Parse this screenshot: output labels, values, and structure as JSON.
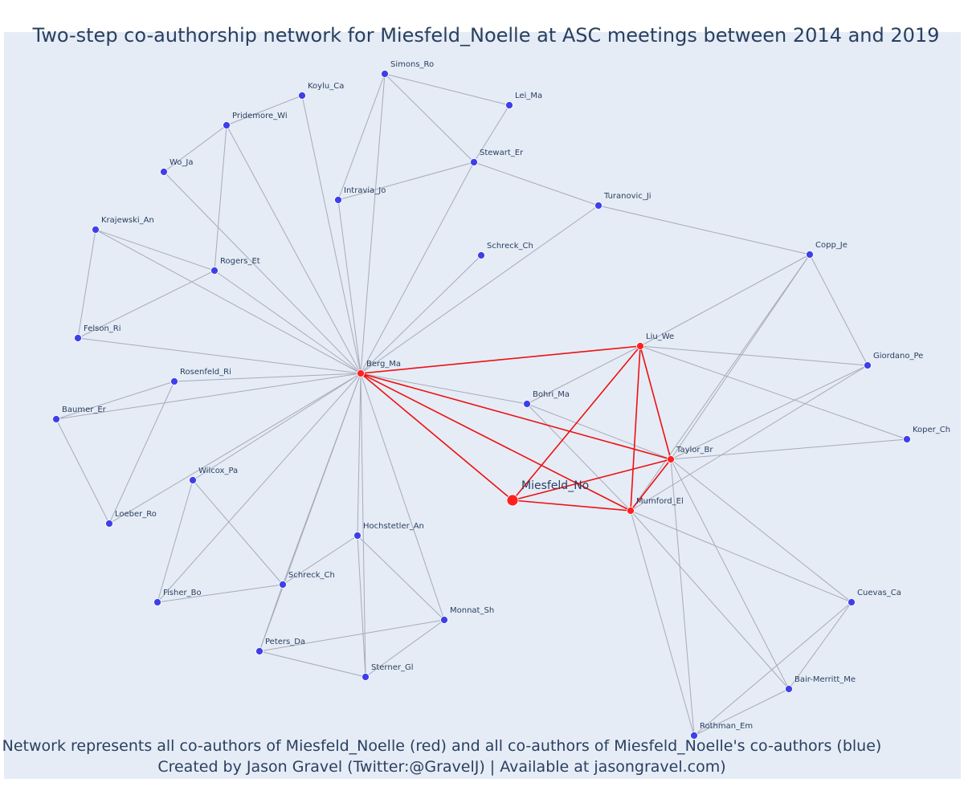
{
  "title": "Two-step co-authorship network for Miesfeld_Noelle at ASC meetings between 2014 and 2019",
  "caption_line1": "Network represents all co-authors of Miesfeld_Noelle (red) and all co-authors of Miesfeld_Noelle's co-authors (blue)",
  "caption_line2": "Created by Jason Gravel (Twitter:@GravelJ) | Available at jasongravel.com)",
  "colors": {
    "background": "#e5ecf6",
    "first_degree": "#ff2020",
    "second_degree": "#3f3fea",
    "red_edge": "#ee1111",
    "gray_edge": "#a9aab8",
    "title_text": "#2a3f5f"
  },
  "nodes": [
    {
      "id": "Miesfeld_No",
      "label": "Miesfeld_No",
      "group": "focal"
    },
    {
      "id": "Berg_Ma",
      "label": "Berg_Ma",
      "group": "coauthor"
    },
    {
      "id": "Liu_We",
      "label": "Liu_We",
      "group": "coauthor"
    },
    {
      "id": "Taylor_Br",
      "label": "Taylor_Br",
      "group": "coauthor"
    },
    {
      "id": "Mumford_El",
      "label": "Mumford_El",
      "group": "coauthor"
    },
    {
      "id": "Simons_Ro",
      "label": "Simons_Ro",
      "group": "second"
    },
    {
      "id": "Lei_Ma",
      "label": "Lei_Ma",
      "group": "second"
    },
    {
      "id": "Koylu_Ca",
      "label": "Koylu_Ca",
      "group": "second"
    },
    {
      "id": "Pridemore_Wi",
      "label": "Pridemore_Wi",
      "group": "second"
    },
    {
      "id": "Stewart_Er",
      "label": "Stewart_Er",
      "group": "second"
    },
    {
      "id": "Wo_Ja",
      "label": "Wo_Ja",
      "group": "second"
    },
    {
      "id": "Intravia_Jo",
      "label": "Intravia_Jo",
      "group": "second"
    },
    {
      "id": "Turanovic_Ji",
      "label": "Turanovic_Ji",
      "group": "second"
    },
    {
      "id": "Krajewski_An",
      "label": "Krajewski_An",
      "group": "second"
    },
    {
      "id": "Schreck_Ch_top",
      "label": "Schreck_Ch",
      "group": "second"
    },
    {
      "id": "Rogers_Et",
      "label": "Rogers_Et",
      "group": "second"
    },
    {
      "id": "Copp_Je",
      "label": "Copp_Je",
      "group": "second"
    },
    {
      "id": "Felson_Ri",
      "label": "Felson_Ri",
      "group": "second"
    },
    {
      "id": "Giordano_Pe",
      "label": "Giordano_Pe",
      "group": "second"
    },
    {
      "id": "Rosenfeld_Ri",
      "label": "Rosenfeld_Ri",
      "group": "second"
    },
    {
      "id": "Bohri_Ma",
      "label": "Bohri_Ma",
      "group": "second"
    },
    {
      "id": "Baumer_Er",
      "label": "Baumer_Er",
      "group": "second"
    },
    {
      "id": "Koper_Ch",
      "label": "Koper_Ch",
      "group": "second"
    },
    {
      "id": "Wilcox_Pa",
      "label": "Wilcox_Pa",
      "group": "second"
    },
    {
      "id": "Loeber_Ro",
      "label": "Loeber_Ro",
      "group": "second"
    },
    {
      "id": "Hochstetler_An",
      "label": "Hochstetler_An",
      "group": "second"
    },
    {
      "id": "Schreck_Ch_low",
      "label": "Schreck_Ch",
      "group": "second"
    },
    {
      "id": "Fisher_Bo",
      "label": "Fisher_Bo",
      "group": "second"
    },
    {
      "id": "Cuevas_Ca",
      "label": "Cuevas_Ca",
      "group": "second"
    },
    {
      "id": "Monnat_Sh",
      "label": "Monnat_Sh",
      "group": "second"
    },
    {
      "id": "Peters_Da",
      "label": "Peters_Da",
      "group": "second"
    },
    {
      "id": "Sterner_Gl",
      "label": "Sterner_Gl",
      "group": "second"
    },
    {
      "id": "Bair-Merritt_Me",
      "label": "Bair-Merritt_Me",
      "group": "second"
    },
    {
      "id": "Rothman_Em",
      "label": "Rothman_Em",
      "group": "second"
    }
  ],
  "red_edges": [
    [
      "Miesfeld_No",
      "Berg_Ma"
    ],
    [
      "Miesfeld_No",
      "Liu_We"
    ],
    [
      "Miesfeld_No",
      "Taylor_Br"
    ],
    [
      "Miesfeld_No",
      "Mumford_El"
    ],
    [
      "Berg_Ma",
      "Liu_We"
    ],
    [
      "Berg_Ma",
      "Taylor_Br"
    ],
    [
      "Berg_Ma",
      "Mumford_El"
    ],
    [
      "Liu_We",
      "Taylor_Br"
    ],
    [
      "Liu_We",
      "Mumford_El"
    ],
    [
      "Taylor_Br",
      "Mumford_El"
    ]
  ],
  "gray_edges": [
    [
      "Berg_Ma",
      "Simons_Ro"
    ],
    [
      "Berg_Ma",
      "Koylu_Ca"
    ],
    [
      "Berg_Ma",
      "Pridemore_Wi"
    ],
    [
      "Berg_Ma",
      "Wo_Ja"
    ],
    [
      "Berg_Ma",
      "Intravia_Jo"
    ],
    [
      "Berg_Ma",
      "Stewart_Er"
    ],
    [
      "Berg_Ma",
      "Turanovic_Ji"
    ],
    [
      "Berg_Ma",
      "Schreck_Ch_top"
    ],
    [
      "Berg_Ma",
      "Krajewski_An"
    ],
    [
      "Berg_Ma",
      "Rogers_Et"
    ],
    [
      "Berg_Ma",
      "Felson_Ri"
    ],
    [
      "Berg_Ma",
      "Rosenfeld_Ri"
    ],
    [
      "Berg_Ma",
      "Baumer_Er"
    ],
    [
      "Berg_Ma",
      "Bohri_Ma"
    ],
    [
      "Berg_Ma",
      "Wilcox_Pa"
    ],
    [
      "Berg_Ma",
      "Loeber_Ro"
    ],
    [
      "Berg_Ma",
      "Fisher_Bo"
    ],
    [
      "Berg_Ma",
      "Hochstetler_An"
    ],
    [
      "Berg_Ma",
      "Schreck_Ch_low"
    ],
    [
      "Berg_Ma",
      "Monnat_Sh"
    ],
    [
      "Berg_Ma",
      "Sterner_Gl"
    ],
    [
      "Berg_Ma",
      "Peters_Da"
    ],
    [
      "Simons_Ro",
      "Lei_Ma"
    ],
    [
      "Simons_Ro",
      "Stewart_Er"
    ],
    [
      "Simons_Ro",
      "Intravia_Jo"
    ],
    [
      "Lei_Ma",
      "Stewart_Er"
    ],
    [
      "Stewart_Er",
      "Intravia_Jo"
    ],
    [
      "Stewart_Er",
      "Turanovic_Ji"
    ],
    [
      "Turanovic_Ji",
      "Copp_Je"
    ],
    [
      "Koylu_Ca",
      "Pridemore_Wi"
    ],
    [
      "Pridemore_Wi",
      "Wo_Ja"
    ],
    [
      "Pridemore_Wi",
      "Rogers_Et"
    ],
    [
      "Krajewski_An",
      "Rogers_Et"
    ],
    [
      "Krajewski_An",
      "Felson_Ri"
    ],
    [
      "Rogers_Et",
      "Felson_Ri"
    ],
    [
      "Baumer_Er",
      "Rosenfeld_Ri"
    ],
    [
      "Baumer_Er",
      "Loeber_Ro"
    ],
    [
      "Rosenfeld_Ri",
      "Loeber_Ro"
    ],
    [
      "Wilcox_Pa",
      "Fisher_Bo"
    ],
    [
      "Wilcox_Pa",
      "Schreck_Ch_low"
    ],
    [
      "Fisher_Bo",
      "Schreck_Ch_low"
    ],
    [
      "Hochstetler_An",
      "Schreck_Ch_low"
    ],
    [
      "Hochstetler_An",
      "Monnat_Sh"
    ],
    [
      "Hochstetler_An",
      "Sterner_Gl"
    ],
    [
      "Schreck_Ch_low",
      "Peters_Da"
    ],
    [
      "Monnat_Sh",
      "Sterner_Gl"
    ],
    [
      "Monnat_Sh",
      "Peters_Da"
    ],
    [
      "Peters_Da",
      "Sterner_Gl"
    ],
    [
      "Liu_We",
      "Copp_Je"
    ],
    [
      "Liu_We",
      "Giordano_Pe"
    ],
    [
      "Liu_We",
      "Bohri_Ma"
    ],
    [
      "Liu_We",
      "Koper_Ch"
    ],
    [
      "Taylor_Br",
      "Copp_Je"
    ],
    [
      "Taylor_Br",
      "Giordano_Pe"
    ],
    [
      "Taylor_Br",
      "Koper_Ch"
    ],
    [
      "Taylor_Br",
      "Bohri_Ma"
    ],
    [
      "Taylor_Br",
      "Cuevas_Ca"
    ],
    [
      "Taylor_Br",
      "Bair-Merritt_Me"
    ],
    [
      "Taylor_Br",
      "Rothman_Em"
    ],
    [
      "Mumford_El",
      "Bohri_Ma"
    ],
    [
      "Mumford_El",
      "Copp_Je"
    ],
    [
      "Mumford_El",
      "Giordano_Pe"
    ],
    [
      "Mumford_El",
      "Cuevas_Ca"
    ],
    [
      "Mumford_El",
      "Bair-Merritt_Me"
    ],
    [
      "Mumford_El",
      "Rothman_Em"
    ],
    [
      "Copp_Je",
      "Giordano_Pe"
    ],
    [
      "Cuevas_Ca",
      "Bair-Merritt_Me"
    ],
    [
      "Cuevas_Ca",
      "Rothman_Em"
    ],
    [
      "Bair-Merritt_Me",
      "Rothman_Em"
    ]
  ]
}
